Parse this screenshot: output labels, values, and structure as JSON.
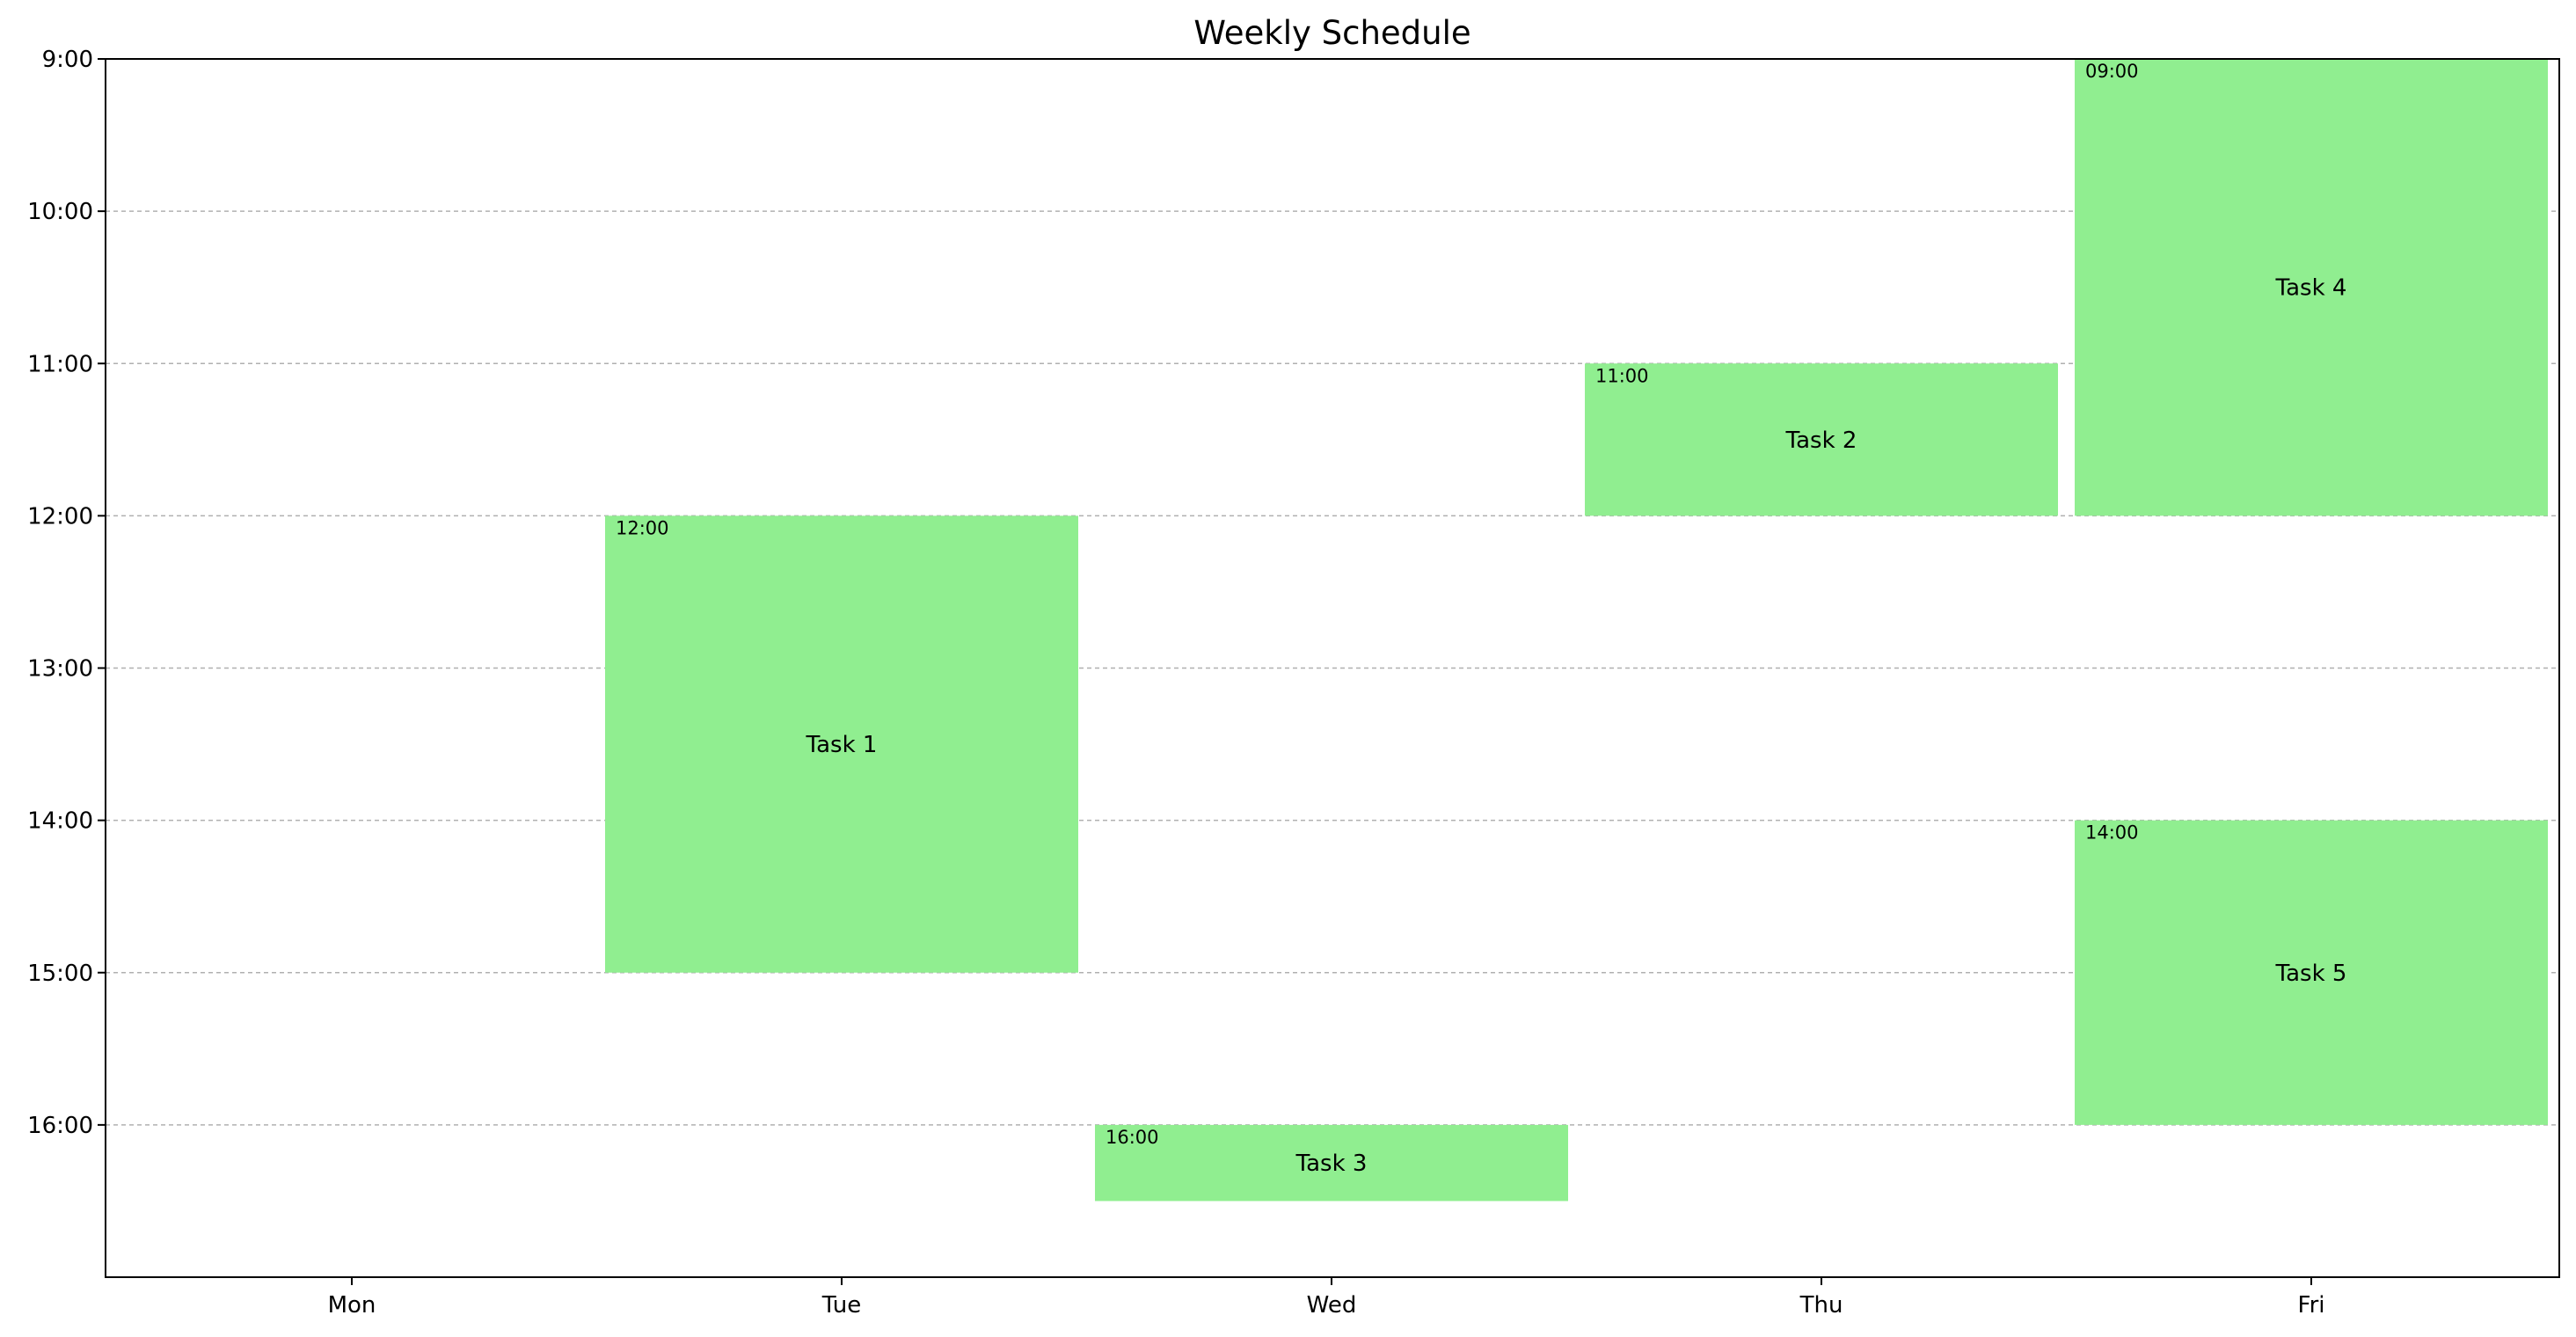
{
  "chart_data": {
    "type": "bar",
    "title": "Weekly Schedule",
    "xlabel": "",
    "ylabel": "",
    "categories": [
      "Mon",
      "Tue",
      "Wed",
      "Thu",
      "Fri"
    ],
    "y_ticks": [
      "9:00",
      "10:00",
      "11:00",
      "12:00",
      "13:00",
      "14:00",
      "15:00",
      "16:00"
    ],
    "ylim": [
      9,
      17
    ],
    "y_inverted": true,
    "grid": "horizontal dashed",
    "bar_color": "#90ee90",
    "tasks": [
      {
        "name": "Task 1",
        "day": "Tue",
        "start": 12,
        "end": 15,
        "start_label": "12:00"
      },
      {
        "name": "Task 2",
        "day": "Thu",
        "start": 11,
        "end": 12,
        "start_label": "11:00"
      },
      {
        "name": "Task 3",
        "day": "Wed",
        "start": 16,
        "end": 16.5,
        "start_label": "16:00"
      },
      {
        "name": "Task 4",
        "day": "Fri",
        "start": 9,
        "end": 12,
        "start_label": "09:00"
      },
      {
        "name": "Task 5",
        "day": "Fri",
        "start": 14,
        "end": 16,
        "start_label": "14:00"
      }
    ]
  }
}
